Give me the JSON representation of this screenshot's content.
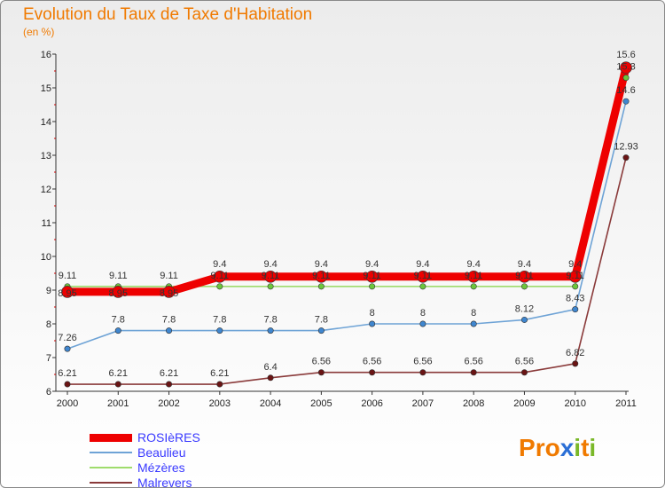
{
  "page": {
    "title": "Evolution du Taux de Taxe d'Habitation",
    "unit": "(en %)"
  },
  "brand": {
    "text": "Proxiti",
    "letters": [
      {
        "ch": "P",
        "color": "#f07a00"
      },
      {
        "ch": "r",
        "color": "#f07a00"
      },
      {
        "ch": "o",
        "color": "#f07a00"
      },
      {
        "ch": "x",
        "color": "#2b6fd6"
      },
      {
        "ch": "i",
        "color": "#7ab829"
      },
      {
        "ch": "t",
        "color": "#f07a00"
      },
      {
        "ch": "i",
        "color": "#7ab829"
      }
    ]
  },
  "chart_data": {
    "type": "line",
    "title": "Evolution du Taux de Taxe d'Habitation",
    "ylabel": "(en %)",
    "xlabel": "",
    "x": [
      "2000",
      "2001",
      "2002",
      "2003",
      "2004",
      "2005",
      "2006",
      "2007",
      "2008",
      "2009",
      "2010",
      "2011"
    ],
    "ylim": [
      6,
      16
    ],
    "yticks": [
      6,
      7,
      8,
      9,
      10,
      11,
      12,
      13,
      14,
      15,
      16
    ],
    "grid": false,
    "legend_position": "bottom-left",
    "series": [
      {
        "name": "ROSIèRES",
        "color": "#ee0000",
        "marker_color": "#ee0000",
        "emphasis": true,
        "values": [
          8.95,
          8.95,
          8.95,
          9.4,
          9.4,
          9.4,
          9.4,
          9.4,
          9.4,
          9.4,
          9.4,
          15.6
        ],
        "labels": [
          "8.95",
          "8.95",
          "8.95",
          "9.4",
          "9.4",
          "9.4",
          "9.4",
          "9.4",
          "9.4",
          "9.4",
          "9.4",
          "15.6"
        ]
      },
      {
        "name": "Beaulieu",
        "color": "#6ea3d6",
        "marker_color": "#3f86cf",
        "values": [
          7.26,
          7.8,
          7.8,
          7.8,
          7.8,
          7.8,
          8,
          8,
          8,
          8.12,
          8.43,
          14.6
        ],
        "labels": [
          "7.26",
          "7.8",
          "7.8",
          "7.8",
          "7.8",
          "7.8",
          "8",
          "8",
          "8",
          "8.12",
          "8.43",
          "14.6"
        ]
      },
      {
        "name": "Mézères",
        "color": "#9fdc6c",
        "marker_color": "#6cc63c",
        "values": [
          9.11,
          9.11,
          9.11,
          9.11,
          9.11,
          9.11,
          9.11,
          9.11,
          9.11,
          9.11,
          9.11,
          15.3
        ],
        "labels": [
          "9.11",
          "9.11",
          "9.11",
          "9.11",
          "9.11",
          "9.11",
          "9.11",
          "9.11",
          "9.11",
          "9.11",
          "9.11",
          "15.3"
        ]
      },
      {
        "name": "Malrevers",
        "color": "#8a3a3a",
        "marker_color": "#6a1414",
        "values": [
          6.21,
          6.21,
          6.21,
          6.21,
          6.4,
          6.56,
          6.56,
          6.56,
          6.56,
          6.56,
          6.82,
          12.93
        ],
        "labels": [
          "6.21",
          "6.21",
          "6.21",
          "6.21",
          "6.4",
          "6.56",
          "6.56",
          "6.56",
          "6.56",
          "6.56",
          "6.82",
          "12.93"
        ]
      }
    ]
  }
}
